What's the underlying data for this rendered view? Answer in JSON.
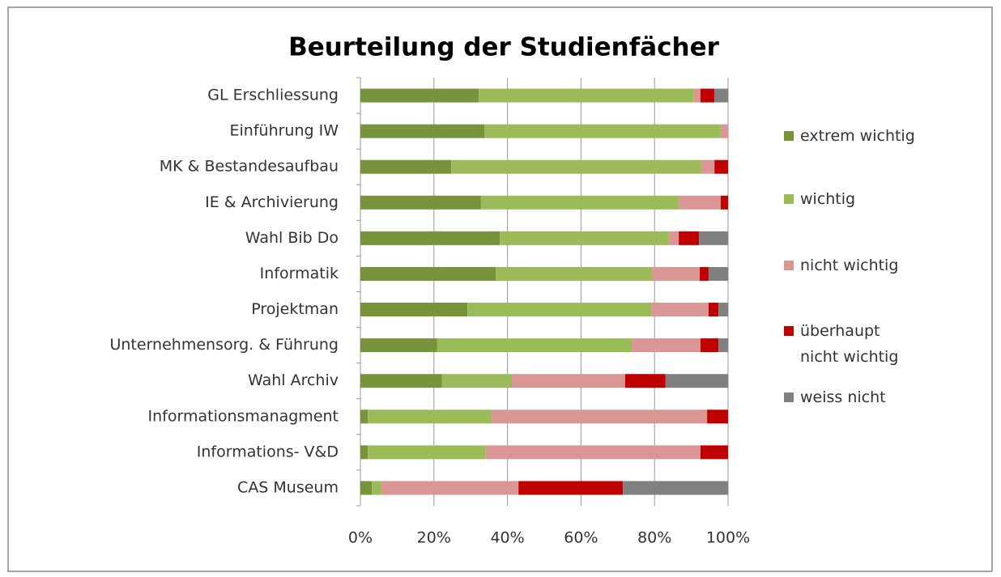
{
  "chart_data": {
    "type": "stacked_bar_horizontal",
    "title": "Beurteilung der Studienfächer",
    "categories": [
      "GL  Erschliessung",
      "Einführung IW",
      "MK & Bestandesaufbau",
      "IE & Archivierung",
      "Wahl Bib Do",
      "Informatik",
      "Projektman",
      "Unternehmensorg. & Führung",
      "Wahl Archiv",
      "Informationsmanagment",
      "Informations- V&D",
      "CAS Museum"
    ],
    "series": [
      {
        "name": "extrem wichtig",
        "color": "#77933c",
        "values": [
          32.2,
          33.7,
          24.7,
          32.8,
          37.9,
          36.8,
          29.1,
          20.9,
          22.2,
          2.0,
          2.0,
          3.1
        ]
      },
      {
        "name": "wichtig",
        "color": "#9bbb59",
        "values": [
          58.5,
          64.3,
          68.0,
          53.8,
          46.0,
          42.5,
          50.0,
          52.9,
          19.0,
          33.7,
          32.1,
          2.6
        ]
      },
      {
        "name": "nicht wichtig",
        "color": "#d99694",
        "values": [
          1.8,
          2.0,
          3.6,
          11.4,
          2.7,
          13.0,
          15.6,
          18.7,
          30.8,
          58.6,
          58.4,
          37.3
        ]
      },
      {
        "name": "überhaupt nicht wichtig",
        "color": "#c00000",
        "values": [
          3.8,
          0,
          3.7,
          2.0,
          5.5,
          2.4,
          2.7,
          4.9,
          11.0,
          5.7,
          7.5,
          28.4
        ]
      },
      {
        "name": "weiss nicht",
        "color": "#808080",
        "values": [
          3.7,
          0,
          0,
          0,
          7.9,
          5.3,
          2.6,
          2.6,
          17.0,
          0,
          0,
          28.6
        ]
      }
    ],
    "xlim": [
      0,
      100
    ],
    "xticks": [
      {
        "value": 0,
        "label": "0%"
      },
      {
        "value": 20,
        "label": "20%"
      },
      {
        "value": 40,
        "label": "40%"
      },
      {
        "value": 60,
        "label": "60%"
      },
      {
        "value": 80,
        "label": "80%"
      },
      {
        "value": 100,
        "label": "100%"
      }
    ],
    "grid": true,
    "legend": "right"
  }
}
